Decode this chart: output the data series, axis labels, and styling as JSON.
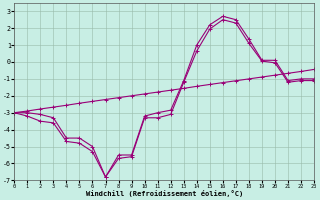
{
  "xlabel": "Windchill (Refroidissement éolien,°C)",
  "background_color": "#c8eee4",
  "line_color": "#990077",
  "grid_color": "#99bbaa",
  "xlim": [
    0,
    23
  ],
  "ylim": [
    -7,
    3.5
  ],
  "xticks": [
    0,
    1,
    2,
    3,
    4,
    5,
    6,
    7,
    8,
    9,
    10,
    11,
    12,
    13,
    14,
    15,
    16,
    17,
    18,
    19,
    20,
    21,
    22,
    23
  ],
  "yticks": [
    -7,
    -6,
    -5,
    -4,
    -3,
    -2,
    -1,
    0,
    1,
    2,
    3
  ],
  "line1_x": [
    0,
    1,
    2,
    3,
    4,
    5,
    6,
    7,
    8,
    9,
    10,
    11,
    12,
    13,
    14,
    15,
    16,
    17,
    18,
    19,
    20,
    21,
    22,
    23
  ],
  "line1_y": [
    -3.0,
    -3.2,
    -3.5,
    -3.6,
    -4.7,
    -4.8,
    -5.3,
    -6.8,
    -5.7,
    -5.6,
    -3.3,
    -3.3,
    -3.1,
    -1.2,
    0.65,
    1.95,
    2.5,
    2.3,
    1.1,
    0.05,
    -0.05,
    -1.2,
    -1.1,
    -1.1
  ],
  "line2_x": [
    0,
    1,
    2,
    3,
    4,
    5,
    6,
    7,
    8,
    9,
    10,
    11,
    12,
    13,
    14,
    15,
    16,
    17,
    18,
    19,
    20,
    21,
    22,
    23
  ],
  "line2_y": [
    -3.0,
    -3.0,
    -3.1,
    -3.3,
    -4.5,
    -4.5,
    -5.0,
    -6.8,
    -5.5,
    -5.5,
    -3.2,
    -3.0,
    -2.85,
    -1.1,
    1.0,
    2.2,
    2.7,
    2.5,
    1.35,
    0.1,
    0.1,
    -1.1,
    -1.0,
    -1.0
  ],
  "line3_x": [
    0,
    1,
    2,
    3,
    4,
    5,
    6,
    7,
    8,
    9,
    10,
    11,
    12,
    13,
    14,
    15,
    16,
    17,
    18,
    19,
    20,
    21,
    22,
    23
  ],
  "line3_y": [
    -3.0,
    -2.9,
    -2.78,
    -2.67,
    -2.56,
    -2.44,
    -2.33,
    -2.22,
    -2.11,
    -2.0,
    -1.89,
    -1.78,
    -1.67,
    -1.56,
    -1.44,
    -1.33,
    -1.22,
    -1.11,
    -1.0,
    -0.89,
    -0.78,
    -0.67,
    -0.56,
    -0.44
  ]
}
